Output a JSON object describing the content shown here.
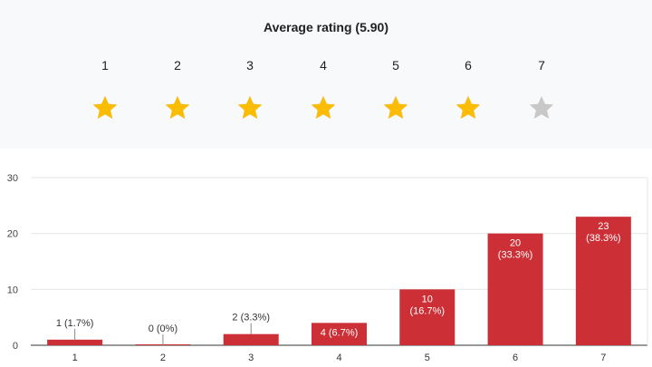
{
  "rating": {
    "title": "Average rating (5.90)",
    "average": 5.9,
    "scale": [
      "1",
      "2",
      "3",
      "4",
      "5",
      "6",
      "7"
    ],
    "star_filled_color": "#fbbc04",
    "star_empty_color": "#c8c8c8"
  },
  "chart_data": {
    "type": "bar",
    "categories": [
      "1",
      "2",
      "3",
      "4",
      "5",
      "6",
      "7"
    ],
    "values": [
      1,
      0,
      2,
      4,
      10,
      20,
      23
    ],
    "data_labels": [
      [
        "1 (1.7%)"
      ],
      [
        "0 (0%)"
      ],
      [
        "2 (3.3%)"
      ],
      [
        "4 (6.7%)"
      ],
      [
        "10",
        "(16.7%)"
      ],
      [
        "20",
        "(33.3%)"
      ],
      [
        "23",
        "(38.3%)"
      ]
    ],
    "ylim": [
      0,
      30
    ],
    "yticks": [
      "0",
      "10",
      "20",
      "30"
    ],
    "grid": true,
    "bar_color": "#cc3036",
    "title": "",
    "xlabel": "",
    "ylabel": ""
  }
}
